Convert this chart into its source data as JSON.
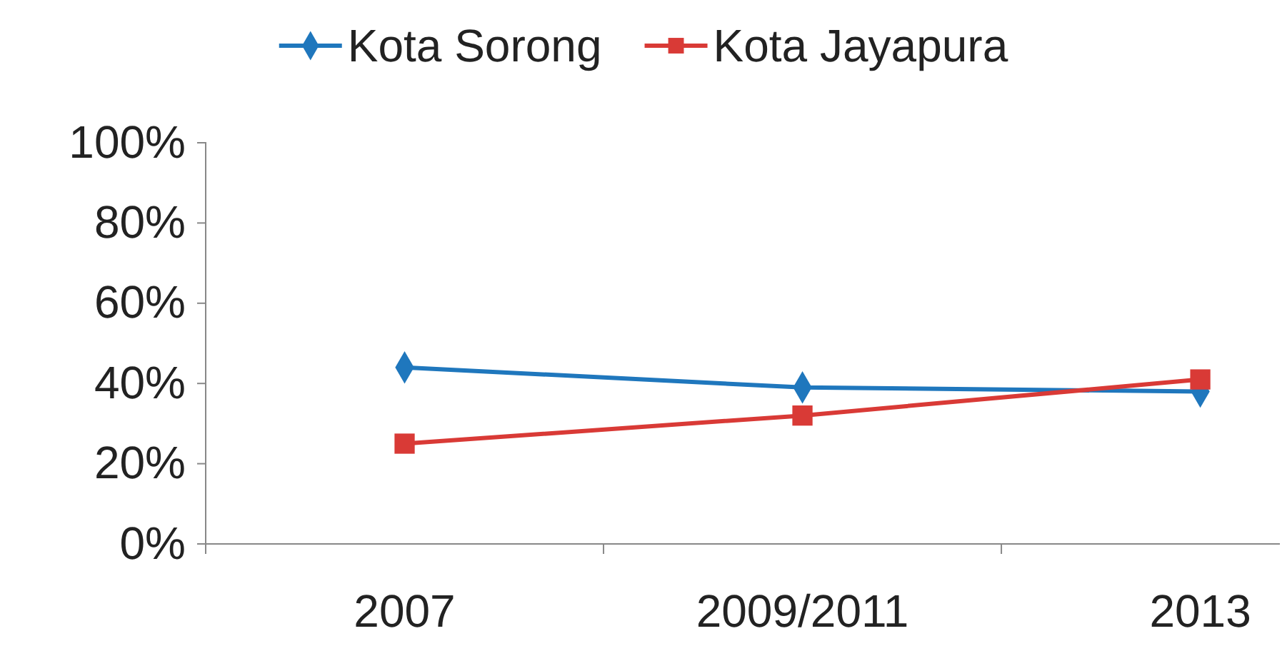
{
  "chart_data": {
    "type": "line",
    "categories": [
      "2007",
      "2009/2011",
      "2013"
    ],
    "series": [
      {
        "name": "Kota Sorong",
        "color": "#1f77bd",
        "values": [
          44,
          39,
          38
        ],
        "marker": "diamond"
      },
      {
        "name": "Kota Jayapura",
        "color": "#d93a36",
        "values": [
          25,
          32,
          41
        ],
        "marker": "square"
      }
    ],
    "ylim": [
      0,
      100
    ],
    "yticks": [
      {
        "value": 0,
        "label": "0%"
      },
      {
        "value": 20,
        "label": "20%"
      },
      {
        "value": 40,
        "label": "40%"
      },
      {
        "value": 60,
        "label": "60%"
      },
      {
        "value": 80,
        "label": "80%"
      },
      {
        "value": 100,
        "label": "100%"
      }
    ],
    "grid": false,
    "legend": "top"
  }
}
